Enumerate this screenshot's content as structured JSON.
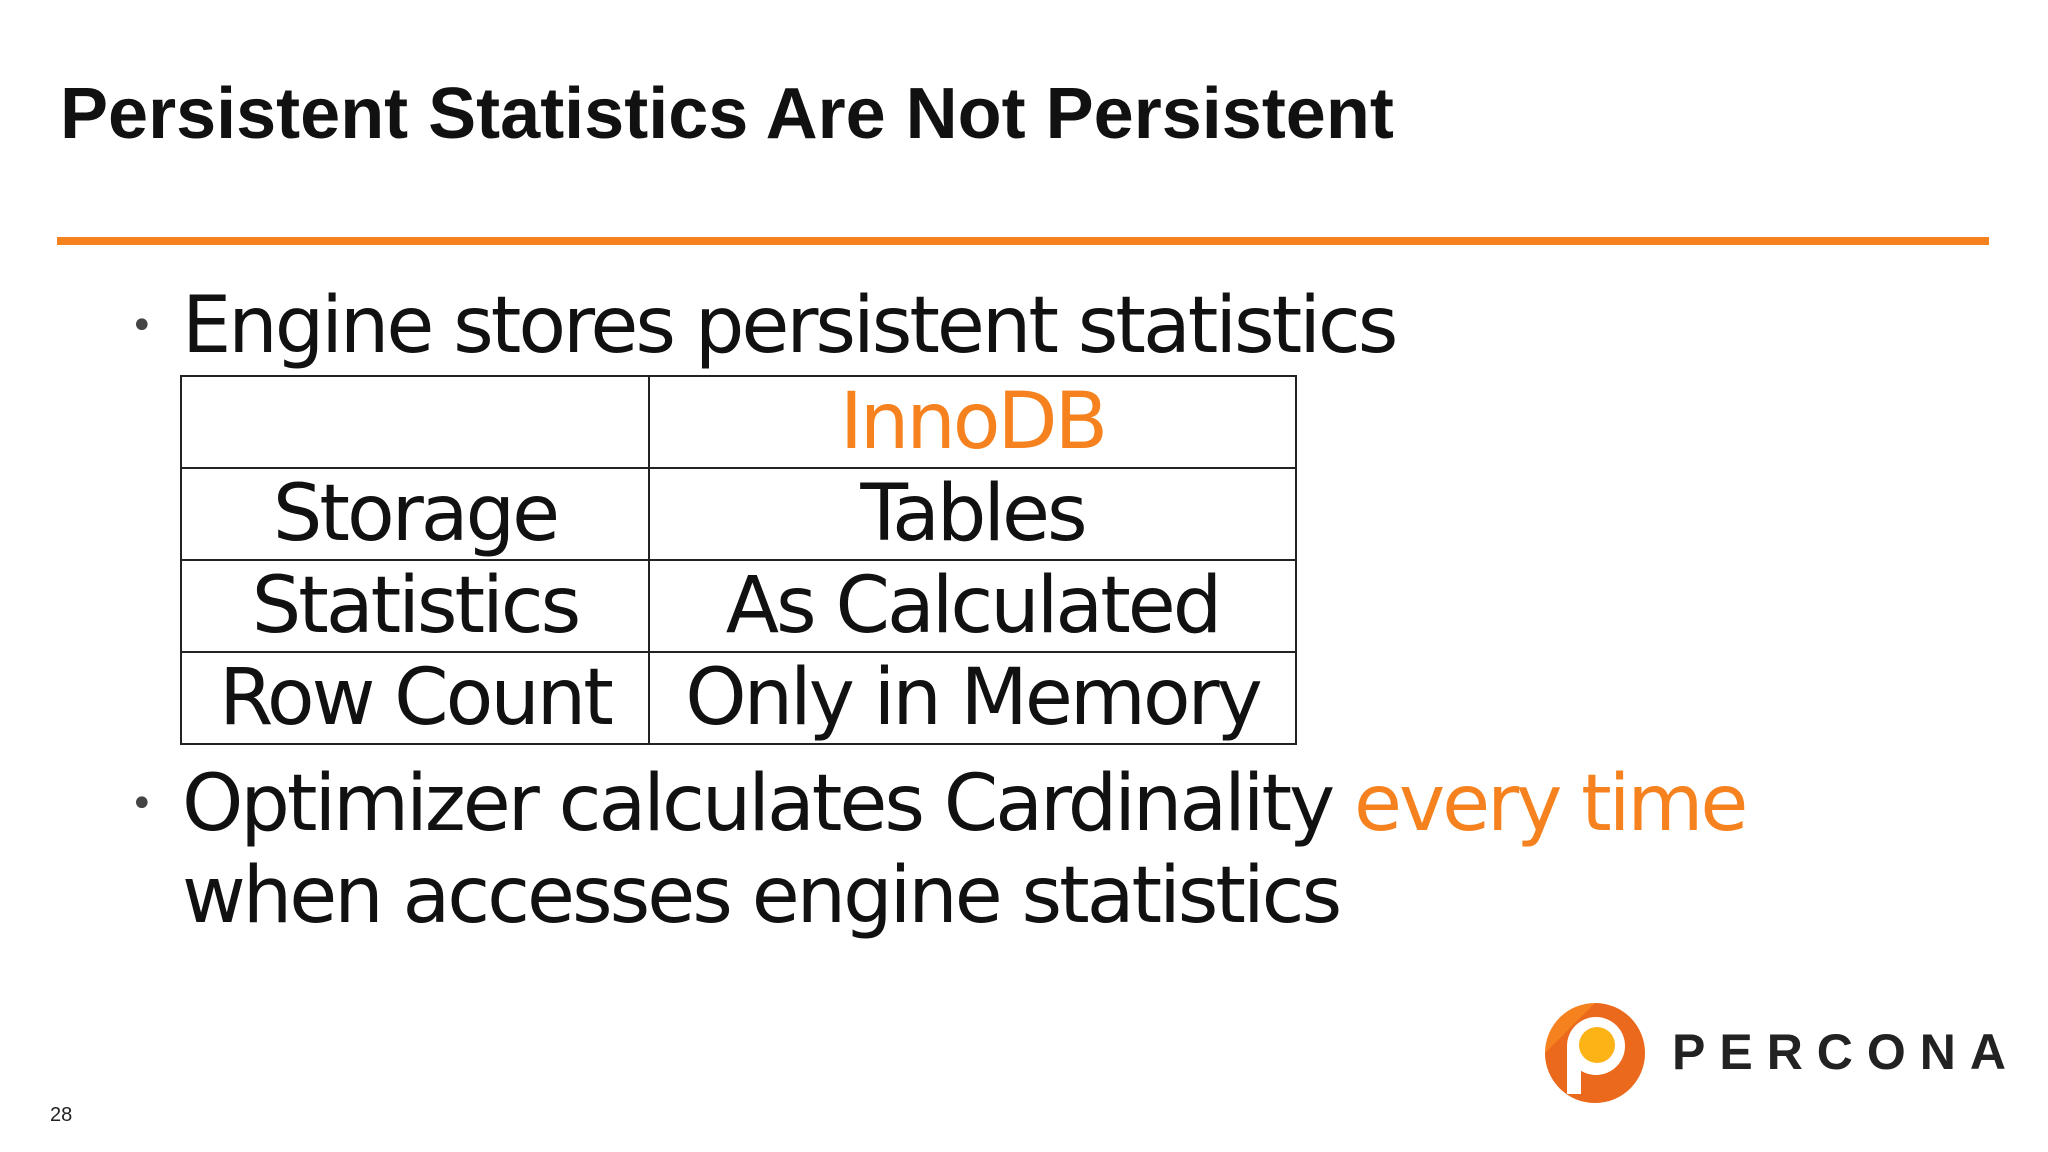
{
  "slide": {
    "title": "Persistent Statistics Are Not Persistent",
    "accent_color": "#f5821f",
    "page_number": "28"
  },
  "bullets": [
    {
      "text": "Engine stores persistent statistics"
    },
    {
      "text_before": "Optimizer calculates Cardinality ",
      "highlight": "every time",
      "text_after": "when accesses engine statistics"
    }
  ],
  "table": {
    "header": [
      "",
      "InnoDB"
    ],
    "rows": [
      [
        "Storage",
        "Tables"
      ],
      [
        "Statistics",
        "As Calculated"
      ],
      [
        "Row Count",
        "Only in Memory"
      ]
    ]
  },
  "logo": {
    "icon": "percona-logo-icon",
    "wordmark": "PERCONA"
  }
}
